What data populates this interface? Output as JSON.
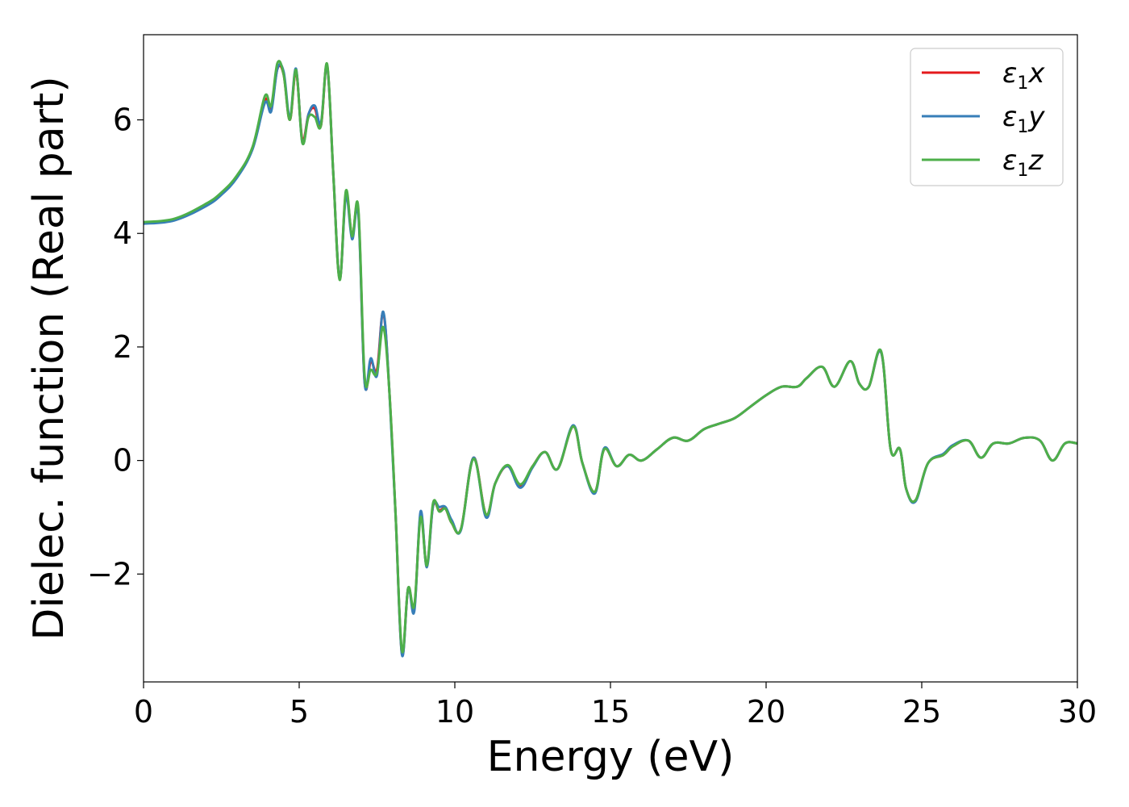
{
  "chart_data": {
    "type": "line",
    "xlabel": "Energy (eV)",
    "ylabel": "Dielec. function (Real part)",
    "xlim": [
      0,
      30
    ],
    "ylim": [
      -3.9,
      7.5
    ],
    "xticks": [
      0,
      5,
      10,
      15,
      20,
      25,
      30
    ],
    "yticks": [
      -2,
      0,
      2,
      4,
      6
    ],
    "xtick_labels": [
      "0",
      "5",
      "10",
      "15",
      "20",
      "25",
      "30"
    ],
    "ytick_labels": [
      "−2",
      "0",
      "2",
      "4",
      "6"
    ],
    "grid": false,
    "legend_position": "top-right",
    "series": [
      {
        "name": "ε₁x",
        "legend_symbol": "ε",
        "legend_subscript": "1",
        "legend_suffix": "x",
        "color": "#e41a1c",
        "x": [
          0,
          1,
          2,
          2.5,
          3,
          3.5,
          3.9,
          4.1,
          4.3,
          4.5,
          4.7,
          4.9,
          5.1,
          5.3,
          5.5,
          5.7,
          5.9,
          6.1,
          6.3,
          6.5,
          6.7,
          6.9,
          7.1,
          7.3,
          7.5,
          7.7,
          7.9,
          8.1,
          8.3,
          8.5,
          8.7,
          8.9,
          9.1,
          9.3,
          9.5,
          9.7,
          9.9,
          10.2,
          10.6,
          11.0,
          11.3,
          11.7,
          12.1,
          12.5,
          12.9,
          13.3,
          13.8,
          14.1,
          14.5,
          14.8,
          15.2,
          15.6,
          16.0,
          16.5,
          17.0,
          17.5,
          18.0,
          18.5,
          19.0,
          19.5,
          20.0,
          20.5,
          21.0,
          21.3,
          21.8,
          22.2,
          22.7,
          23.0,
          23.3,
          23.7,
          24.0,
          24.3,
          24.5,
          24.8,
          25.2,
          25.7,
          26.0,
          26.5,
          26.9,
          27.3,
          27.8,
          28.3,
          28.8,
          29.2,
          29.6,
          30.0
        ],
        "values": [
          4.19,
          4.25,
          4.5,
          4.7,
          5.0,
          5.5,
          6.35,
          6.2,
          6.9,
          6.8,
          6.0,
          6.85,
          5.65,
          6.1,
          6.2,
          5.9,
          6.95,
          5.0,
          3.2,
          4.7,
          3.95,
          4.4,
          1.4,
          1.75,
          1.6,
          2.6,
          1.2,
          -1.0,
          -3.4,
          -2.25,
          -2.6,
          -0.95,
          -1.85,
          -0.8,
          -0.88,
          -0.85,
          -1.1,
          -1.2,
          0.05,
          -0.95,
          -0.4,
          -0.1,
          -0.45,
          -0.1,
          0.15,
          -0.15,
          0.6,
          -0.05,
          -0.55,
          0.2,
          -0.1,
          0.1,
          0.0,
          0.2,
          0.4,
          0.35,
          0.55,
          0.65,
          0.75,
          0.95,
          1.15,
          1.3,
          1.3,
          1.45,
          1.65,
          1.3,
          1.75,
          1.35,
          1.3,
          1.9,
          0.2,
          0.2,
          -0.5,
          -0.7,
          -0.05,
          0.1,
          0.25,
          0.35,
          0.05,
          0.3,
          0.3,
          0.4,
          0.35,
          0.0,
          0.3,
          0.3
        ]
      },
      {
        "name": "ε₁y",
        "legend_symbol": "ε",
        "legend_subscript": "1",
        "legend_suffix": "y",
        "color": "#377eb8",
        "x": [
          0,
          1,
          2,
          2.5,
          3,
          3.5,
          3.9,
          4.1,
          4.3,
          4.5,
          4.7,
          4.9,
          5.1,
          5.3,
          5.5,
          5.7,
          5.9,
          6.1,
          6.3,
          6.5,
          6.7,
          6.9,
          7.1,
          7.3,
          7.5,
          7.7,
          7.9,
          8.1,
          8.3,
          8.5,
          8.7,
          8.9,
          9.1,
          9.3,
          9.5,
          9.7,
          9.9,
          10.2,
          10.6,
          11.0,
          11.3,
          11.7,
          12.1,
          12.5,
          12.9,
          13.3,
          13.8,
          14.1,
          14.5,
          14.8,
          15.2,
          15.6,
          16.0,
          16.5,
          17.0,
          17.5,
          18.0,
          18.5,
          19.0,
          19.5,
          20.0,
          20.5,
          21.0,
          21.3,
          21.8,
          22.2,
          22.7,
          23.0,
          23.3,
          23.7,
          24.0,
          24.3,
          24.5,
          24.8,
          25.2,
          25.7,
          26.0,
          26.5,
          26.9,
          27.3,
          27.8,
          28.3,
          28.8,
          29.2,
          29.6,
          30.0
        ],
        "values": [
          4.17,
          4.23,
          4.48,
          4.68,
          4.98,
          5.48,
          6.3,
          6.15,
          6.9,
          6.85,
          6.05,
          6.9,
          5.6,
          6.1,
          6.25,
          5.95,
          6.95,
          5.0,
          3.2,
          4.65,
          3.9,
          4.35,
          1.38,
          1.8,
          1.5,
          2.62,
          1.2,
          -1.0,
          -3.42,
          -2.25,
          -2.65,
          -0.9,
          -1.88,
          -0.8,
          -0.82,
          -0.82,
          -1.05,
          -1.22,
          0.05,
          -1.0,
          -0.4,
          -0.1,
          -0.48,
          -0.12,
          0.15,
          -0.15,
          0.62,
          -0.05,
          -0.58,
          0.22,
          -0.1,
          0.1,
          0.0,
          0.2,
          0.4,
          0.35,
          0.55,
          0.65,
          0.75,
          0.95,
          1.15,
          1.3,
          1.3,
          1.45,
          1.65,
          1.3,
          1.75,
          1.35,
          1.3,
          1.9,
          0.2,
          0.2,
          -0.5,
          -0.72,
          -0.05,
          0.12,
          0.27,
          0.35,
          0.05,
          0.3,
          0.3,
          0.4,
          0.35,
          0.0,
          0.3,
          0.3
        ]
      },
      {
        "name": "ε₁z",
        "legend_symbol": "ε",
        "legend_subscript": "1",
        "legend_suffix": "z",
        "color": "#4daf4a",
        "x": [
          0,
          1,
          2,
          2.5,
          3,
          3.5,
          3.9,
          4.1,
          4.3,
          4.5,
          4.7,
          4.9,
          5.1,
          5.3,
          5.5,
          5.7,
          5.9,
          6.1,
          6.3,
          6.5,
          6.7,
          6.9,
          7.1,
          7.3,
          7.5,
          7.7,
          7.9,
          8.1,
          8.3,
          8.5,
          8.7,
          8.9,
          9.1,
          9.3,
          9.5,
          9.7,
          9.9,
          10.2,
          10.6,
          11.0,
          11.3,
          11.7,
          12.1,
          12.5,
          12.9,
          13.3,
          13.8,
          14.1,
          14.5,
          14.8,
          15.2,
          15.6,
          16.0,
          16.5,
          17.0,
          17.5,
          18.0,
          18.5,
          19.0,
          19.5,
          20.0,
          20.5,
          21.0,
          21.3,
          21.8,
          22.2,
          22.7,
          23.0,
          23.3,
          23.7,
          24.0,
          24.3,
          24.5,
          24.8,
          25.2,
          25.7,
          26.0,
          26.5,
          26.9,
          27.3,
          27.8,
          28.3,
          28.8,
          29.2,
          29.6,
          30.0
        ],
        "values": [
          4.2,
          4.26,
          4.52,
          4.72,
          5.02,
          5.52,
          6.42,
          6.25,
          7.0,
          6.8,
          6.0,
          6.88,
          5.6,
          6.05,
          6.05,
          5.9,
          6.98,
          5.0,
          3.18,
          4.75,
          3.95,
          4.45,
          1.5,
          1.6,
          1.55,
          2.35,
          1.2,
          -1.0,
          -3.35,
          -2.25,
          -2.55,
          -1.0,
          -1.85,
          -0.75,
          -0.9,
          -0.85,
          -1.1,
          -1.2,
          0.03,
          -0.95,
          -0.4,
          -0.08,
          -0.42,
          -0.1,
          0.15,
          -0.15,
          0.6,
          -0.05,
          -0.55,
          0.2,
          -0.1,
          0.1,
          0.0,
          0.2,
          0.4,
          0.35,
          0.55,
          0.65,
          0.75,
          0.95,
          1.15,
          1.3,
          1.3,
          1.45,
          1.65,
          1.3,
          1.75,
          1.35,
          1.3,
          1.92,
          0.2,
          0.2,
          -0.5,
          -0.7,
          -0.05,
          0.1,
          0.25,
          0.35,
          0.05,
          0.3,
          0.3,
          0.4,
          0.35,
          0.0,
          0.3,
          0.3
        ]
      }
    ]
  }
}
